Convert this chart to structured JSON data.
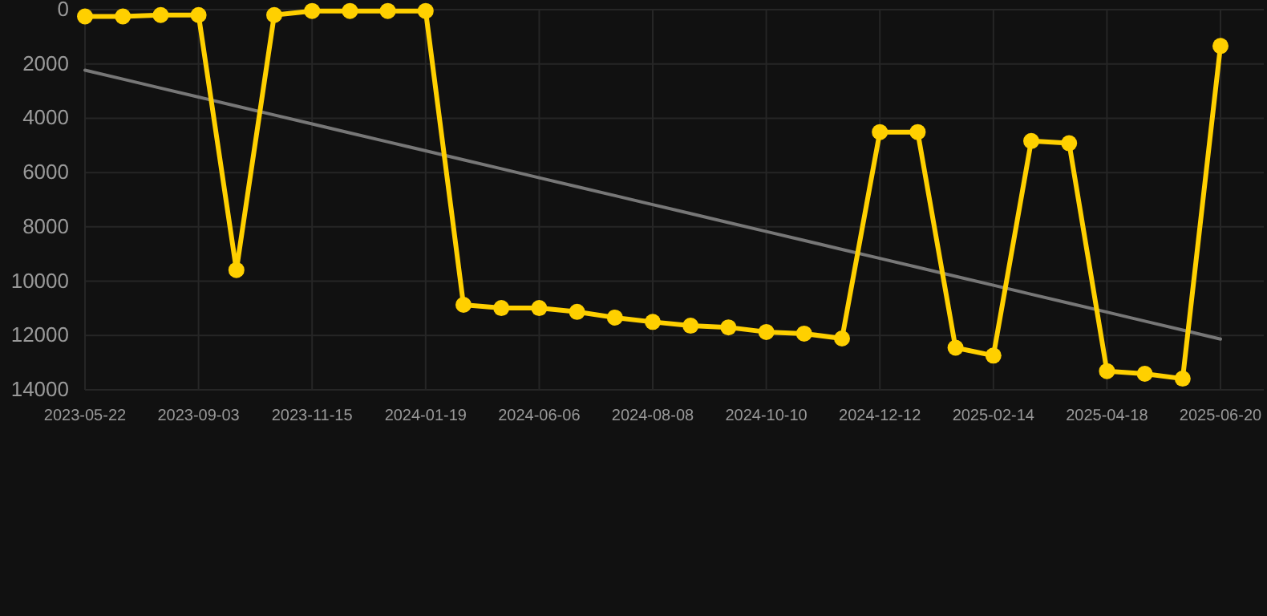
{
  "chart_data": {
    "type": "line",
    "categories": [
      "2023-05-22",
      null,
      null,
      "2023-09-03",
      null,
      null,
      "2023-11-15",
      null,
      null,
      "2024-01-19",
      null,
      null,
      "2024-06-06",
      null,
      null,
      "2024-08-08",
      null,
      null,
      "2024-10-10",
      null,
      null,
      "2024-12-12",
      null,
      null,
      "2025-02-14",
      null,
      null,
      "2025-04-18",
      null,
      null,
      "2025-06-20"
    ],
    "series": [
      {
        "color": "#ffd000",
        "marker": "circle",
        "values": [
          250,
          250,
          200,
          200,
          9590,
          200,
          50,
          50,
          50,
          50,
          10870,
          10990,
          10990,
          11130,
          11340,
          11500,
          11640,
          11700,
          11870,
          11930,
          12110,
          4510,
          4510,
          12450,
          12740,
          4840,
          4920,
          13310,
          13410,
          13590,
          1340
        ]
      },
      {
        "type": "line",
        "color": "#777777",
        "marker": "none",
        "values": [
          2230,
          2560,
          2890,
          3220,
          3550,
          3880,
          4210,
          4540,
          4870,
          5200,
          5530,
          5860,
          6190,
          6520,
          6850,
          7180,
          7510,
          7840,
          8170,
          8500,
          8830,
          9160,
          9490,
          9820,
          10150,
          10480,
          10810,
          11140,
          11470,
          11800,
          12130
        ]
      }
    ],
    "ylim": [
      14000,
      0
    ],
    "yticks": [
      0,
      2000,
      4000,
      6000,
      8000,
      10000,
      12000,
      14000
    ],
    "grid": true
  }
}
